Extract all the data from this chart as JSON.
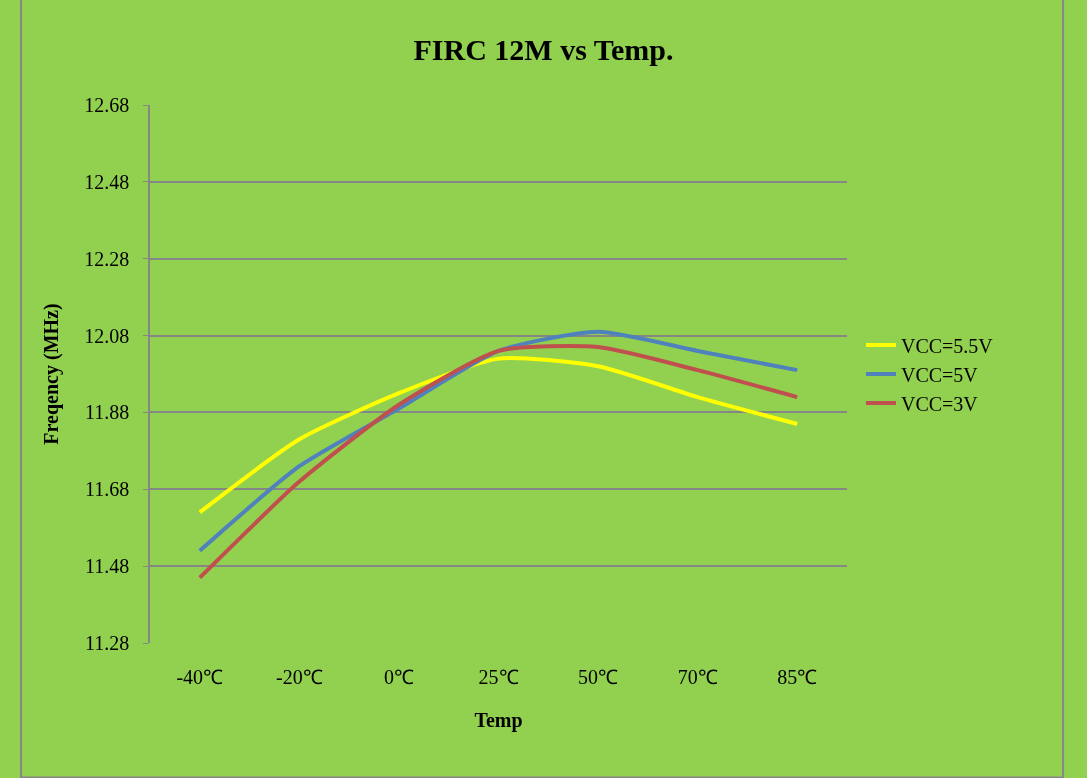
{
  "chart_data": {
    "type": "line",
    "title": "FIRC 12M vs Temp.",
    "xlabel": "Temp",
    "ylabel": "Freqency (MHz)",
    "categories": [
      "-40℃",
      "-20℃",
      "0℃",
      "25℃",
      "50℃",
      "70℃",
      "85℃"
    ],
    "series": [
      {
        "name": "VCC=5.5V",
        "color": "#ffff00",
        "values": [
          11.62,
          11.81,
          11.93,
          12.02,
          12.0,
          11.92,
          11.85
        ]
      },
      {
        "name": "VCC=5V",
        "color": "#4f81bd",
        "values": [
          11.52,
          11.74,
          11.89,
          12.04,
          12.09,
          12.04,
          11.99
        ]
      },
      {
        "name": "VCC=3V",
        "color": "#c0504d",
        "values": [
          11.45,
          11.7,
          11.9,
          12.04,
          12.05,
          11.99,
          11.92
        ]
      }
    ],
    "ylim": [
      11.28,
      12.68
    ],
    "yticks": [
      {
        "value": 11.28,
        "label": "11.28"
      },
      {
        "value": 11.48,
        "label": "11.48"
      },
      {
        "value": 11.68,
        "label": "11.68"
      },
      {
        "value": 11.88,
        "label": "11.88"
      },
      {
        "value": 12.08,
        "label": "12.08"
      },
      {
        "value": 12.28,
        "label": "12.28"
      },
      {
        "value": 12.48,
        "label": "12.48"
      },
      {
        "value": 12.68,
        "label": "12.68"
      }
    ],
    "grid": "y",
    "legend": "right",
    "marker": "none",
    "line_style": "solid"
  }
}
